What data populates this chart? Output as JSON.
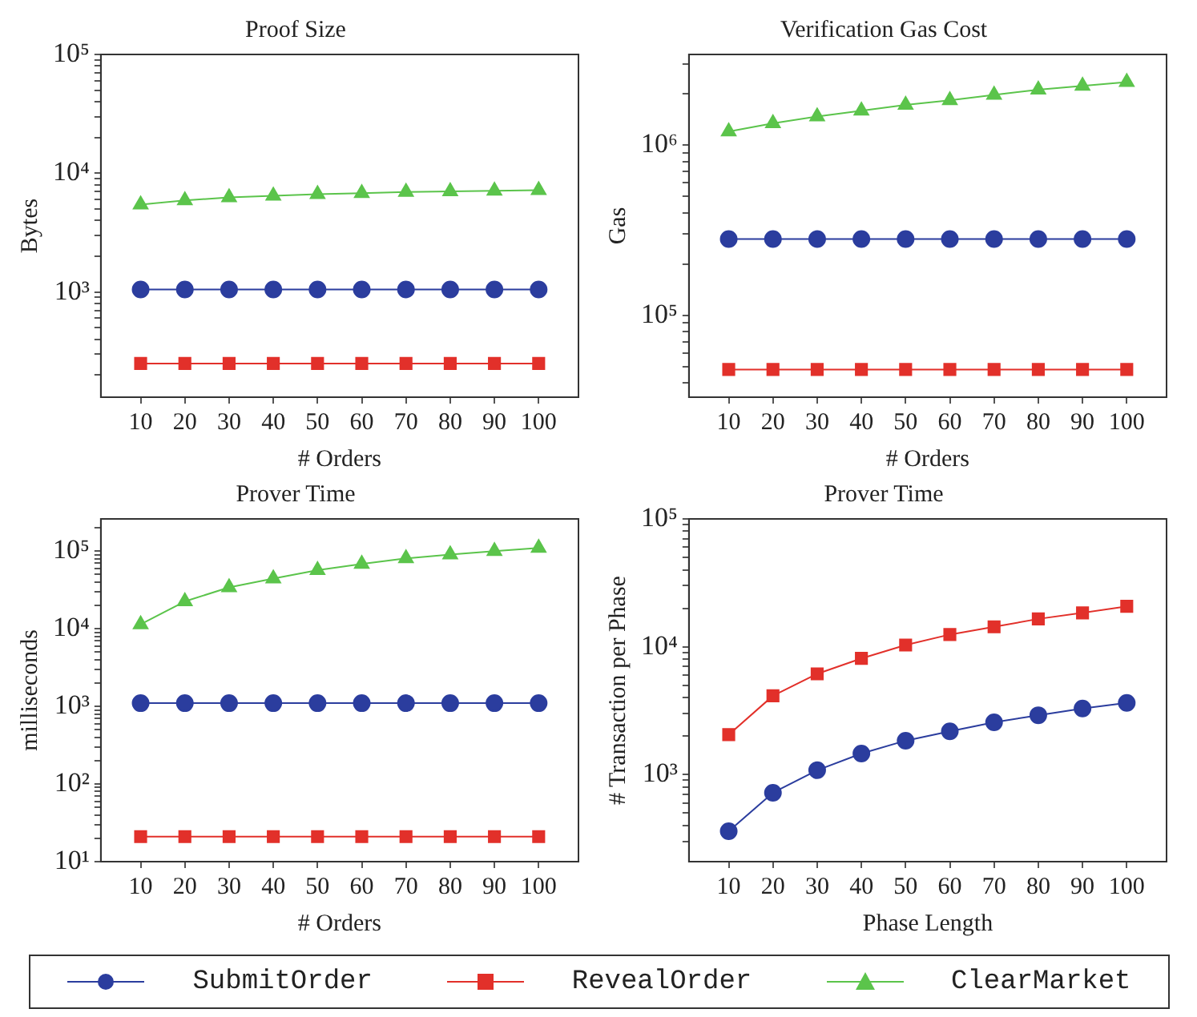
{
  "chart_data": [
    {
      "type": "line",
      "title": "Proof Size",
      "xlabel": "# Orders",
      "ylabel": "Bytes",
      "log": "y",
      "grid": false,
      "legend": "bottom",
      "line_style": "solid",
      "x": [
        10,
        20,
        30,
        40,
        50,
        60,
        70,
        80,
        90,
        100
      ],
      "xlim": [
        1,
        109
      ],
      "xticks": [
        10,
        20,
        30,
        40,
        50,
        60,
        70,
        80,
        90,
        100
      ],
      "ylim": [
        130,
        100000
      ],
      "yticks": [
        {
          "value": 200,
          "label": null
        },
        {
          "value": 300,
          "label": null
        },
        {
          "value": 400,
          "label": null
        },
        {
          "value": 500,
          "label": null
        },
        {
          "value": 600,
          "label": null
        },
        {
          "value": 700,
          "label": null
        },
        {
          "value": 800,
          "label": null
        },
        {
          "value": 900,
          "label": null
        },
        {
          "value": 1000,
          "label": "10³"
        },
        {
          "value": 2000,
          "label": null
        },
        {
          "value": 3000,
          "label": null
        },
        {
          "value": 4000,
          "label": null
        },
        {
          "value": 5000,
          "label": null
        },
        {
          "value": 6000,
          "label": null
        },
        {
          "value": 7000,
          "label": null
        },
        {
          "value": 8000,
          "label": null
        },
        {
          "value": 9000,
          "label": null
        },
        {
          "value": 10000,
          "label": "10⁴"
        },
        {
          "value": 20000,
          "label": null
        },
        {
          "value": 30000,
          "label": null
        },
        {
          "value": 40000,
          "label": null
        },
        {
          "value": 50000,
          "label": null
        },
        {
          "value": 60000,
          "label": null
        },
        {
          "value": 70000,
          "label": null
        },
        {
          "value": 80000,
          "label": null
        },
        {
          "value": 90000,
          "label": null
        },
        {
          "value": 100000,
          "label": "10⁵"
        }
      ],
      "series": [
        {
          "name": "SubmitOrder",
          "color": "#2b3d9e",
          "marker": "circle",
          "values": [
            1050,
            1050,
            1050,
            1050,
            1050,
            1050,
            1050,
            1050,
            1050,
            1050
          ]
        },
        {
          "name": "RevealOrder",
          "color": "#e2302a",
          "marker": "square",
          "values": [
            250,
            250,
            250,
            250,
            250,
            250,
            250,
            250,
            250,
            250
          ]
        },
        {
          "name": "ClearMarket",
          "color": "#5bc44b",
          "marker": "triangle",
          "values": [
            5450,
            5900,
            6250,
            6450,
            6670,
            6800,
            6960,
            7030,
            7100,
            7200
          ]
        }
      ]
    },
    {
      "type": "line",
      "title": "Verification Gas Cost",
      "xlabel": "# Orders",
      "ylabel": "Gas",
      "log": "y",
      "grid": false,
      "legend": "bottom",
      "line_style": "solid",
      "x": [
        10,
        20,
        30,
        40,
        50,
        60,
        70,
        80,
        90,
        100
      ],
      "xlim": [
        1,
        109
      ],
      "xticks": [
        10,
        20,
        30,
        40,
        50,
        60,
        70,
        80,
        90,
        100
      ],
      "ylim": [
        33000,
        3400000
      ],
      "yticks": [
        {
          "value": 40000,
          "label": null
        },
        {
          "value": 50000,
          "label": null
        },
        {
          "value": 60000,
          "label": null
        },
        {
          "value": 70000,
          "label": null
        },
        {
          "value": 80000,
          "label": null
        },
        {
          "value": 90000,
          "label": null
        },
        {
          "value": 100000,
          "label": "10⁵"
        },
        {
          "value": 200000,
          "label": null
        },
        {
          "value": 300000,
          "label": null
        },
        {
          "value": 400000,
          "label": null
        },
        {
          "value": 500000,
          "label": null
        },
        {
          "value": 600000,
          "label": null
        },
        {
          "value": 700000,
          "label": null
        },
        {
          "value": 800000,
          "label": null
        },
        {
          "value": 900000,
          "label": null
        },
        {
          "value": 1000000,
          "label": "10⁶"
        },
        {
          "value": 2000000,
          "label": null
        },
        {
          "value": 3000000,
          "label": null
        }
      ],
      "series": [
        {
          "name": "SubmitOrder",
          "color": "#2b3d9e",
          "marker": "circle",
          "values": [
            280000,
            280000,
            280000,
            280000,
            280000,
            280000,
            280000,
            280000,
            280000,
            280000
          ]
        },
        {
          "name": "RevealOrder",
          "color": "#e2302a",
          "marker": "square",
          "values": [
            48000,
            48000,
            48000,
            48000,
            48000,
            48000,
            48000,
            48000,
            48000,
            48000
          ]
        },
        {
          "name": "ClearMarket",
          "color": "#5bc44b",
          "marker": "triangle",
          "values": [
            1200000,
            1340000,
            1470000,
            1590000,
            1720000,
            1830000,
            1970000,
            2110000,
            2220000,
            2340000
          ]
        }
      ]
    },
    {
      "type": "line",
      "title": "Prover Time",
      "xlabel": "# Orders",
      "ylabel": "milliseconds",
      "log": "y",
      "grid": false,
      "legend": "bottom",
      "line_style": "solid",
      "x": [
        10,
        20,
        30,
        40,
        50,
        60,
        70,
        80,
        90,
        100
      ],
      "xlim": [
        1,
        109
      ],
      "xticks": [
        10,
        20,
        30,
        40,
        50,
        60,
        70,
        80,
        90,
        100
      ],
      "ylim": [
        10,
        260000
      ],
      "yticks": [
        {
          "value": 10,
          "label": "10¹"
        },
        {
          "value": 20,
          "label": null
        },
        {
          "value": 30,
          "label": null
        },
        {
          "value": 40,
          "label": null
        },
        {
          "value": 50,
          "label": null
        },
        {
          "value": 60,
          "label": null
        },
        {
          "value": 70,
          "label": null
        },
        {
          "value": 80,
          "label": null
        },
        {
          "value": 90,
          "label": null
        },
        {
          "value": 100,
          "label": "10²"
        },
        {
          "value": 200,
          "label": null
        },
        {
          "value": 300,
          "label": null
        },
        {
          "value": 400,
          "label": null
        },
        {
          "value": 500,
          "label": null
        },
        {
          "value": 600,
          "label": null
        },
        {
          "value": 700,
          "label": null
        },
        {
          "value": 800,
          "label": null
        },
        {
          "value": 900,
          "label": null
        },
        {
          "value": 1000,
          "label": "10³"
        },
        {
          "value": 2000,
          "label": null
        },
        {
          "value": 3000,
          "label": null
        },
        {
          "value": 4000,
          "label": null
        },
        {
          "value": 5000,
          "label": null
        },
        {
          "value": 6000,
          "label": null
        },
        {
          "value": 7000,
          "label": null
        },
        {
          "value": 8000,
          "label": null
        },
        {
          "value": 9000,
          "label": null
        },
        {
          "value": 10000,
          "label": "10⁴"
        },
        {
          "value": 20000,
          "label": null
        },
        {
          "value": 30000,
          "label": null
        },
        {
          "value": 40000,
          "label": null
        },
        {
          "value": 50000,
          "label": null
        },
        {
          "value": 60000,
          "label": null
        },
        {
          "value": 70000,
          "label": null
        },
        {
          "value": 80000,
          "label": null
        },
        {
          "value": 90000,
          "label": null
        },
        {
          "value": 100000,
          "label": "10⁵"
        },
        {
          "value": 200000,
          "label": null
        }
      ],
      "series": [
        {
          "name": "SubmitOrder",
          "color": "#2b3d9e",
          "marker": "circle",
          "values": [
            1100,
            1100,
            1100,
            1100,
            1100,
            1100,
            1100,
            1100,
            1100,
            1100
          ]
        },
        {
          "name": "RevealOrder",
          "color": "#e2302a",
          "marker": "square",
          "values": [
            21,
            21,
            21,
            21,
            21,
            21,
            21,
            21,
            21,
            21
          ]
        },
        {
          "name": "ClearMarket",
          "color": "#5bc44b",
          "marker": "triangle",
          "values": [
            11400,
            22500,
            34100,
            44400,
            56900,
            68300,
            80600,
            90600,
            100000,
            110000
          ]
        }
      ]
    },
    {
      "type": "line",
      "title": "Prover Time",
      "xlabel": "Phase Length",
      "ylabel": "# Transaction per Phase",
      "log": "y",
      "grid": false,
      "legend": "bottom",
      "line_style": "solid",
      "x": [
        10,
        20,
        30,
        40,
        50,
        60,
        70,
        80,
        90,
        100
      ],
      "xlim": [
        1,
        109
      ],
      "xticks": [
        10,
        20,
        30,
        40,
        50,
        60,
        70,
        80,
        90,
        100
      ],
      "ylim": [
        208,
        100000
      ],
      "yticks": [
        {
          "value": 300,
          "label": null
        },
        {
          "value": 400,
          "label": null
        },
        {
          "value": 500,
          "label": null
        },
        {
          "value": 600,
          "label": null
        },
        {
          "value": 700,
          "label": null
        },
        {
          "value": 800,
          "label": null
        },
        {
          "value": 900,
          "label": null
        },
        {
          "value": 1000,
          "label": "10³"
        },
        {
          "value": 2000,
          "label": null
        },
        {
          "value": 3000,
          "label": null
        },
        {
          "value": 4000,
          "label": null
        },
        {
          "value": 5000,
          "label": null
        },
        {
          "value": 6000,
          "label": null
        },
        {
          "value": 7000,
          "label": null
        },
        {
          "value": 8000,
          "label": null
        },
        {
          "value": 9000,
          "label": null
        },
        {
          "value": 10000,
          "label": "10⁴"
        },
        {
          "value": 20000,
          "label": null
        },
        {
          "value": 30000,
          "label": null
        },
        {
          "value": 40000,
          "label": null
        },
        {
          "value": 50000,
          "label": null
        },
        {
          "value": 60000,
          "label": null
        },
        {
          "value": 70000,
          "label": null
        },
        {
          "value": 80000,
          "label": null
        },
        {
          "value": 90000,
          "label": null
        },
        {
          "value": 100000,
          "label": "10⁵"
        }
      ],
      "series": [
        {
          "name": "SubmitOrder",
          "color": "#2b3d9e",
          "marker": "circle",
          "values": [
            360,
            720,
            1080,
            1460,
            1840,
            2180,
            2560,
            2910,
            3280,
            3630
          ]
        },
        {
          "name": "RevealOrder",
          "color": "#e2302a",
          "marker": "square",
          "values": [
            2050,
            4130,
            6130,
            8100,
            10300,
            12450,
            14300,
            16500,
            18400,
            20700
          ]
        }
      ]
    }
  ]
}
